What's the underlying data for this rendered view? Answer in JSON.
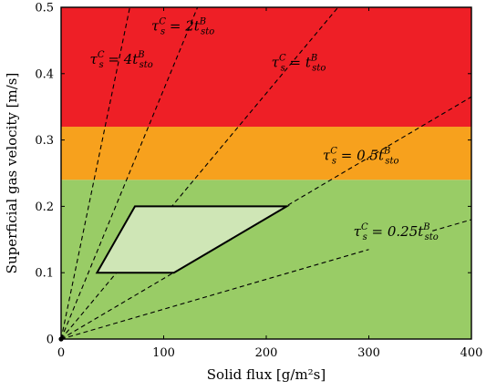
{
  "chart_data": {
    "type": "line",
    "xlabel": "Solid flux [g/m²s]",
    "ylabel": "Superficial gas velocity [m/s]",
    "xlim": [
      0,
      400
    ],
    "ylim": [
      0,
      0.5
    ],
    "x_ticks": [
      0,
      100,
      200,
      300,
      400
    ],
    "y_ticks": [
      0,
      0.1,
      0.2,
      0.3,
      0.4,
      0.5
    ],
    "x_tick_labels": [
      "0",
      "100",
      "200",
      "300",
      "400"
    ],
    "y_tick_labels": [
      "0",
      "0.1",
      "0.2",
      "0.3",
      "0.4",
      "0.5"
    ],
    "grid": false,
    "bands": [
      {
        "y0": 0.0,
        "y1": 0.24,
        "color": "#99cc66"
      },
      {
        "y0": 0.24,
        "y1": 0.32,
        "color": "#f7a11d"
      },
      {
        "y0": 0.32,
        "y1": 0.5,
        "color": "#ee1f26"
      }
    ],
    "region": {
      "points": [
        [
          35,
          0.1
        ],
        [
          110,
          0.1
        ],
        [
          220,
          0.2
        ],
        [
          72,
          0.2
        ]
      ],
      "fill": "#cfe6b6",
      "stroke": "#000000"
    },
    "series": [
      {
        "style": "dashed",
        "x": [
          0,
          67
        ],
        "y": [
          0,
          0.5
        ],
        "label": {
          "base": "τ",
          "sub": "s",
          "sup": "C",
          "rest": " = 4t",
          "rsub": "sto",
          "rsup": "B",
          "at": [
            28,
            0.415
          ]
        }
      },
      {
        "style": "dashed",
        "x": [
          0,
          133
        ],
        "y": [
          0,
          0.5
        ],
        "label": {
          "base": "τ",
          "sub": "s",
          "sup": "C",
          "rest": " = 2t",
          "rsub": "sto",
          "rsup": "B",
          "at": [
            88,
            0.465
          ]
        }
      },
      {
        "style": "dashed",
        "x": [
          0,
          270
        ],
        "y": [
          0,
          0.5
        ],
        "label": {
          "base": "τ",
          "sub": "s",
          "sup": "C",
          "rest": " = t",
          "rsub": "sto",
          "rsup": "B",
          "at": [
            205,
            0.41
          ]
        }
      },
      {
        "style": "dashed",
        "x": [
          0,
          400
        ],
        "y": [
          0,
          0.365
        ],
        "label": {
          "base": "τ",
          "sub": "s",
          "sup": "C",
          "rest": " = 0.5t",
          "rsub": "sto",
          "rsup": "B",
          "at": [
            255,
            0.27
          ]
        }
      },
      {
        "style": "dashed",
        "x": [
          0,
          300
        ],
        "y": [
          0,
          0.135
        ],
        "label": {
          "base": "τ",
          "sub": "s",
          "sup": "C",
          "rest": " = 0.25t",
          "rsub": "sto",
          "rsup": "B",
          "at": [
            285,
            0.155
          ]
        }
      },
      {
        "style": "dashed",
        "x": [
          362,
          400
        ],
        "y": [
          0.163,
          0.18
        ],
        "label": null
      }
    ]
  }
}
